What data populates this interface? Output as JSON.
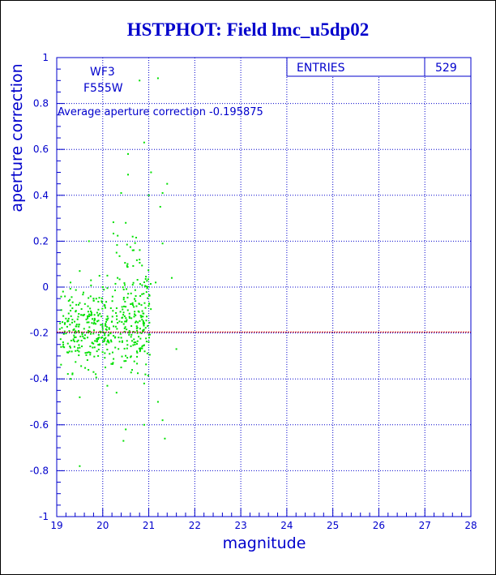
{
  "title": "HSTPHOT: Field lmc_u5dp02",
  "stats_box": {
    "label": "ENTRIES",
    "value": "529"
  },
  "annotations": {
    "camera": "WF3",
    "filter": "F555W",
    "average_text": "Average aperture correction -0.195875"
  },
  "colors": {
    "text": "#0000cc",
    "grid": "#0000cc",
    "points": "#00e000",
    "avg_line": "#cc0000"
  },
  "chart_data": {
    "type": "scatter",
    "title": "HSTPHOT: Field lmc_u5dp02",
    "xlabel": "magnitude",
    "ylabel": "aperture correction",
    "xlim": [
      19,
      28
    ],
    "ylim": [
      -1,
      1
    ],
    "x_ticks": [
      19,
      20,
      21,
      22,
      23,
      24,
      25,
      26,
      27,
      28
    ],
    "y_ticks": [
      -1,
      -0.8,
      -0.6,
      -0.4,
      -0.2,
      0,
      0.2,
      0.4,
      0.6,
      0.8,
      1
    ],
    "grid": true,
    "entries": 529,
    "average_line": -0.195875,
    "points_sample": [
      [
        20.8,
        0.9
      ],
      [
        21.2,
        0.91
      ],
      [
        20.9,
        0.63
      ],
      [
        20.55,
        0.58
      ],
      [
        20.55,
        0.49
      ],
      [
        21.05,
        0.5
      ],
      [
        21.4,
        0.45
      ],
      [
        21.3,
        0.41
      ],
      [
        20.4,
        0.41
      ],
      [
        21.0,
        0.4
      ],
      [
        21.25,
        0.35
      ],
      [
        20.5,
        0.28
      ],
      [
        20.65,
        0.22
      ],
      [
        21.3,
        0.19
      ],
      [
        19.7,
        0.2
      ],
      [
        20.3,
        0.15
      ],
      [
        20.8,
        0.12
      ],
      [
        19.5,
        0.07
      ],
      [
        20.1,
        0.05
      ],
      [
        21.5,
        0.04
      ],
      [
        21.15,
        0.02
      ],
      [
        19.3,
        0.02
      ],
      [
        20.0,
        0.0
      ],
      [
        19.8,
        -0.05
      ],
      [
        19.1,
        -0.1
      ],
      [
        19.6,
        -0.12
      ],
      [
        20.2,
        -0.15
      ],
      [
        19.4,
        -0.2
      ],
      [
        20.7,
        -0.25
      ],
      [
        21.6,
        -0.27
      ],
      [
        19.9,
        -0.3
      ],
      [
        20.4,
        -0.35
      ],
      [
        19.3,
        -0.4
      ],
      [
        20.9,
        -0.42
      ],
      [
        20.3,
        -0.46
      ],
      [
        21.2,
        -0.5
      ],
      [
        19.5,
        -0.48
      ],
      [
        21.3,
        -0.58
      ],
      [
        21.35,
        -0.66
      ],
      [
        20.9,
        -0.6
      ],
      [
        20.5,
        -0.62
      ],
      [
        20.45,
        -0.67
      ],
      [
        19.5,
        -0.78
      ],
      [
        20.1,
        -0.43
      ],
      [
        19.8,
        -0.37
      ]
    ]
  }
}
